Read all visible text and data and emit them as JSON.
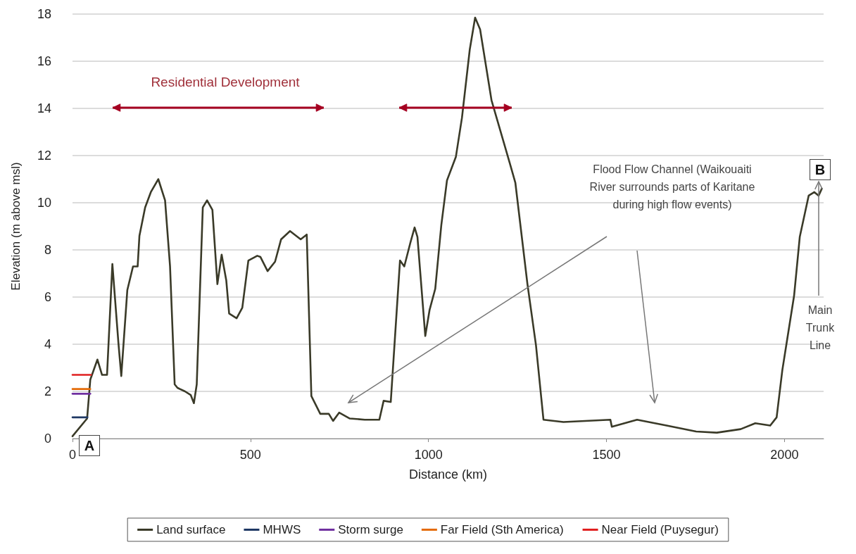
{
  "chart_data": {
    "type": "line",
    "xlabel": "Distance (km)",
    "ylabel": "Elevation (m above msl)",
    "xlim": [
      0,
      2110
    ],
    "xticks": [
      0,
      500,
      1000,
      1500,
      2000
    ],
    "ylim": [
      0,
      18
    ],
    "yticks": [
      0,
      2,
      4,
      6,
      8,
      10,
      12,
      14,
      16,
      18
    ],
    "grid": "y",
    "legend": "bottom",
    "marker": "none",
    "line_style": "solid",
    "series": [
      {
        "name": "Land surface",
        "color": "#3a3a28",
        "x": [
          0,
          41,
          50,
          70,
          83,
          97,
          112,
          129,
          137,
          154,
          170,
          183,
          188,
          204,
          220,
          241,
          260,
          274,
          287,
          295,
          316,
          332,
          341,
          349,
          366,
          378,
          393,
          407,
          419,
          432,
          440,
          461,
          477,
          494,
          519,
          528,
          548,
          569,
          586,
          611,
          641,
          658,
          671,
          696,
          720,
          732,
          749,
          779,
          821,
          862,
          874,
          894,
          920,
          932,
          949,
          961,
          969,
          991,
          1003,
          1019,
          1036,
          1052,
          1077,
          1094,
          1116,
          1131,
          1145,
          1177,
          1228,
          1244,
          1278,
          1302,
          1323,
          1379,
          1511,
          1515,
          1586,
          1669,
          1752,
          1810,
          1877,
          1918,
          1960,
          1978,
          1994,
          2027,
          2043,
          2068,
          2084,
          2096,
          2105
        ],
        "values": [
          0.1,
          0.85,
          2.5,
          3.35,
          2.7,
          2.7,
          7.4,
          4.05,
          2.65,
          6.3,
          7.3,
          7.3,
          8.6,
          9.8,
          10.45,
          11,
          10.1,
          7.3,
          2.3,
          2.15,
          2,
          1.85,
          1.5,
          2.3,
          9.8,
          10.1,
          9.7,
          6.55,
          7.8,
          6.7,
          5.3,
          5.1,
          5.55,
          7.55,
          7.75,
          7.7,
          7.1,
          7.5,
          8.45,
          8.8,
          8.45,
          8.65,
          1.8,
          1.05,
          1.05,
          0.75,
          1.1,
          0.85,
          0.8,
          0.8,
          1.6,
          1.55,
          7.55,
          7.3,
          8.3,
          8.95,
          8.55,
          4.35,
          5.45,
          6.35,
          9.05,
          10.95,
          11.95,
          13.6,
          16.5,
          17.85,
          17.35,
          14.35,
          11.7,
          10.85,
          6.55,
          3.95,
          0.8,
          0.7,
          0.8,
          0.5,
          0.8,
          0.55,
          0.3,
          0.25,
          0.4,
          0.65,
          0.55,
          0.9,
          2.9,
          6.05,
          8.55,
          10.3,
          10.45,
          10.3,
          10.6
        ]
      },
      {
        "name": "MHWS",
        "color": "#1f3864",
        "x": [
          0,
          42
        ],
        "values": [
          0.9,
          0.9
        ]
      },
      {
        "name": "Storm surge",
        "color": "#7030a0",
        "x": [
          0,
          50
        ],
        "values": [
          1.9,
          1.9
        ]
      },
      {
        "name": "Far Field (Sth America)",
        "color": "#e46c0a",
        "x": [
          0,
          50
        ],
        "values": [
          2.1,
          2.1
        ]
      },
      {
        "name": "Near Field (Puysegur)",
        "color": "#e02020",
        "x": [
          0,
          52
        ],
        "values": [
          2.7,
          2.7
        ]
      }
    ],
    "annotations": [
      "Residential Development",
      "Flood Flow Channel (Waikouaiti River surrounds parts of Karitane during high flow events)",
      "Main Trunk Line",
      "A",
      "B"
    ]
  }
}
